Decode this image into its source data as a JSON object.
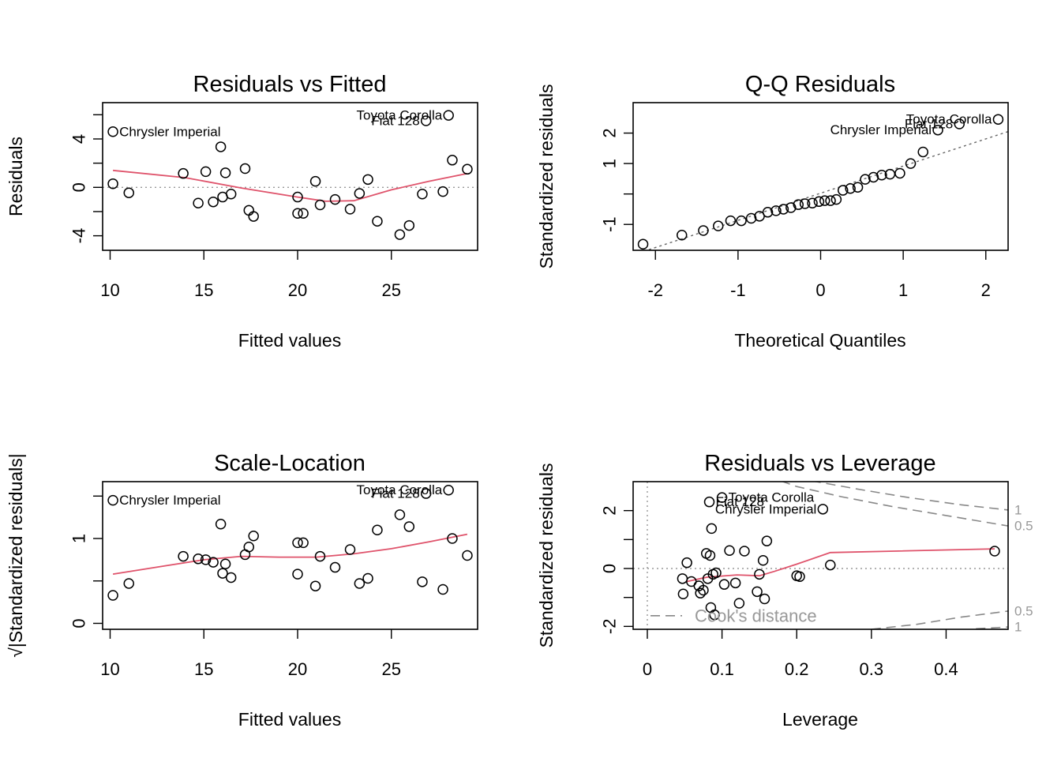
{
  "chart_data": [
    {
      "type": "scatter",
      "title": "Residuals vs Fitted",
      "xlabel": "Fitted values",
      "ylabel": "Residuals",
      "xlim": [
        9.6,
        29.6
      ],
      "ylim": [
        -5.2,
        7.0
      ],
      "xticks": [
        10,
        15,
        20,
        25
      ],
      "yticks": [
        -4,
        0,
        4
      ],
      "ytick_minor": [
        -2,
        2,
        6
      ],
      "reference_line": {
        "y": 0
      },
      "points": [
        {
          "x": 10.15,
          "y": 4.6
        },
        {
          "x": 10.15,
          "y": 0.3
        },
        {
          "x": 11.0,
          "y": -0.45
        },
        {
          "x": 13.9,
          "y": 1.15
        },
        {
          "x": 14.7,
          "y": -1.3
        },
        {
          "x": 15.1,
          "y": 1.3
        },
        {
          "x": 15.5,
          "y": -1.2
        },
        {
          "x": 15.9,
          "y": 3.35
        },
        {
          "x": 16.0,
          "y": -0.8
        },
        {
          "x": 16.15,
          "y": 1.2
        },
        {
          "x": 16.45,
          "y": -0.55
        },
        {
          "x": 17.2,
          "y": 1.55
        },
        {
          "x": 17.4,
          "y": -1.9
        },
        {
          "x": 17.65,
          "y": -2.4
        },
        {
          "x": 20.0,
          "y": -0.8
        },
        {
          "x": 20.0,
          "y": -2.15
        },
        {
          "x": 20.3,
          "y": -2.15
        },
        {
          "x": 20.95,
          "y": 0.5
        },
        {
          "x": 21.2,
          "y": -1.45
        },
        {
          "x": 22.0,
          "y": -1.0
        },
        {
          "x": 22.8,
          "y": -1.8
        },
        {
          "x": 23.3,
          "y": -0.5
        },
        {
          "x": 23.75,
          "y": 0.65
        },
        {
          "x": 24.25,
          "y": -2.8
        },
        {
          "x": 25.45,
          "y": -3.9
        },
        {
          "x": 25.95,
          "y": -3.15
        },
        {
          "x": 26.65,
          "y": -0.55
        },
        {
          "x": 26.85,
          "y": 5.5
        },
        {
          "x": 27.75,
          "y": -0.35
        },
        {
          "x": 28.05,
          "y": 5.95
        },
        {
          "x": 28.25,
          "y": 2.25
        },
        {
          "x": 29.05,
          "y": 1.5
        }
      ],
      "smooth": [
        [
          10.15,
          1.4
        ],
        [
          14,
          0.8
        ],
        [
          17,
          -0.05
        ],
        [
          20,
          -0.8
        ],
        [
          21.5,
          -1.15
        ],
        [
          23,
          -1.1
        ],
        [
          25,
          -0.2
        ],
        [
          27,
          0.5
        ],
        [
          29.05,
          1.15
        ]
      ],
      "labels": [
        {
          "text": "Chrysler Imperial",
          "x": 10.15,
          "y": 4.6,
          "side": "right"
        },
        {
          "text": "Toyota Corolla",
          "x": 28.05,
          "y": 5.95,
          "side": "left"
        },
        {
          "text": "Fiat 128",
          "x": 26.85,
          "y": 5.5,
          "side": "left"
        }
      ]
    },
    {
      "type": "scatter",
      "title": "Q-Q Residuals",
      "xlabel": "Theoretical Quantiles",
      "ylabel": "Standardized residuals",
      "xlim": [
        -2.27,
        2.27
      ],
      "ylim": [
        -1.85,
        3.0
      ],
      "xticks": [
        -2,
        -1,
        0,
        1,
        2
      ],
      "yticks": [
        -1,
        1,
        2
      ],
      "ytick_minor": [
        0
      ],
      "reference_line": {
        "x1": -2.27,
        "y1": -2.0,
        "x2": 2.27,
        "y2": 2.05
      },
      "points": [
        {
          "x": -2.15,
          "y": -1.65
        },
        {
          "x": -1.68,
          "y": -1.35
        },
        {
          "x": -1.42,
          "y": -1.2
        },
        {
          "x": -1.24,
          "y": -1.05
        },
        {
          "x": -1.09,
          "y": -0.88
        },
        {
          "x": -0.96,
          "y": -0.88
        },
        {
          "x": -0.84,
          "y": -0.8
        },
        {
          "x": -0.74,
          "y": -0.73
        },
        {
          "x": -0.64,
          "y": -0.6
        },
        {
          "x": -0.54,
          "y": -0.55
        },
        {
          "x": -0.45,
          "y": -0.5
        },
        {
          "x": -0.36,
          "y": -0.45
        },
        {
          "x": -0.27,
          "y": -0.35
        },
        {
          "x": -0.19,
          "y": -0.32
        },
        {
          "x": -0.1,
          "y": -0.3
        },
        {
          "x": -0.02,
          "y": -0.25
        },
        {
          "x": 0.05,
          "y": -0.22
        },
        {
          "x": 0.12,
          "y": -0.22
        },
        {
          "x": 0.19,
          "y": -0.18
        },
        {
          "x": 0.27,
          "y": 0.12
        },
        {
          "x": 0.36,
          "y": 0.18
        },
        {
          "x": 0.45,
          "y": 0.22
        },
        {
          "x": 0.54,
          "y": 0.48
        },
        {
          "x": 0.64,
          "y": 0.55
        },
        {
          "x": 0.74,
          "y": 0.62
        },
        {
          "x": 0.84,
          "y": 0.65
        },
        {
          "x": 0.96,
          "y": 0.68
        },
        {
          "x": 1.09,
          "y": 1.0
        },
        {
          "x": 1.24,
          "y": 1.38
        },
        {
          "x": 1.42,
          "y": 2.1
        },
        {
          "x": 1.68,
          "y": 2.3
        },
        {
          "x": 2.15,
          "y": 2.45
        }
      ],
      "labels": [
        {
          "text": "Toyota Corolla",
          "x": 2.15,
          "y": 2.45,
          "side": "left"
        },
        {
          "text": "Fiat 128",
          "x": 1.68,
          "y": 2.3,
          "side": "left"
        },
        {
          "text": "Chrysler Imperial",
          "x": 1.42,
          "y": 2.1,
          "side": "left"
        }
      ]
    },
    {
      "type": "scatter",
      "title": "Scale-Location",
      "xlabel": "Fitted values",
      "ylabel": "√|Standardized residuals|",
      "xlim": [
        9.6,
        29.6
      ],
      "ylim": [
        -0.07,
        1.67
      ],
      "xticks": [
        10,
        15,
        20,
        25
      ],
      "yticks": [
        0.0,
        1.0
      ],
      "ytick_minor": [
        0.5,
        1.5
      ],
      "points": [
        {
          "x": 10.15,
          "y": 1.45
        },
        {
          "x": 10.15,
          "y": 0.33
        },
        {
          "x": 11.0,
          "y": 0.47
        },
        {
          "x": 13.9,
          "y": 0.79
        },
        {
          "x": 14.7,
          "y": 0.76
        },
        {
          "x": 15.1,
          "y": 0.75
        },
        {
          "x": 15.5,
          "y": 0.72
        },
        {
          "x": 15.9,
          "y": 1.17
        },
        {
          "x": 16.0,
          "y": 0.59
        },
        {
          "x": 16.15,
          "y": 0.7
        },
        {
          "x": 16.45,
          "y": 0.54
        },
        {
          "x": 17.2,
          "y": 0.81
        },
        {
          "x": 17.4,
          "y": 0.9
        },
        {
          "x": 17.65,
          "y": 1.03
        },
        {
          "x": 20.0,
          "y": 0.95
        },
        {
          "x": 20.0,
          "y": 0.58
        },
        {
          "x": 20.3,
          "y": 0.95
        },
        {
          "x": 20.95,
          "y": 0.44
        },
        {
          "x": 21.2,
          "y": 0.79
        },
        {
          "x": 22.0,
          "y": 0.66
        },
        {
          "x": 22.8,
          "y": 0.87
        },
        {
          "x": 23.3,
          "y": 0.47
        },
        {
          "x": 23.75,
          "y": 0.53
        },
        {
          "x": 24.25,
          "y": 1.1
        },
        {
          "x": 25.45,
          "y": 1.28
        },
        {
          "x": 25.95,
          "y": 1.14
        },
        {
          "x": 26.65,
          "y": 0.49
        },
        {
          "x": 26.85,
          "y": 1.53
        },
        {
          "x": 27.75,
          "y": 0.4
        },
        {
          "x": 28.05,
          "y": 1.57
        },
        {
          "x": 28.25,
          "y": 1.0
        },
        {
          "x": 29.05,
          "y": 0.8
        }
      ],
      "smooth": [
        [
          10.15,
          0.58
        ],
        [
          13,
          0.68
        ],
        [
          15,
          0.75
        ],
        [
          17,
          0.79
        ],
        [
          19,
          0.78
        ],
        [
          21,
          0.78
        ],
        [
          23,
          0.82
        ],
        [
          25,
          0.88
        ],
        [
          27,
          0.96
        ],
        [
          29.05,
          1.05
        ]
      ],
      "labels": [
        {
          "text": "Chrysler Imperial",
          "x": 10.15,
          "y": 1.45,
          "side": "right"
        },
        {
          "text": "Toyota Corolla",
          "x": 28.05,
          "y": 1.57,
          "side": "left"
        },
        {
          "text": "Fiat 128",
          "x": 26.85,
          "y": 1.53,
          "side": "left"
        }
      ]
    },
    {
      "type": "scatter",
      "title": "Residuals vs Leverage",
      "xlabel": "Leverage",
      "ylabel": "Standardized residuals",
      "xlim": [
        -0.019,
        0.483
      ],
      "ylim": [
        -2.1,
        3.0
      ],
      "xticks": [
        0.0,
        0.1,
        0.2,
        0.3,
        0.4
      ],
      "yticks": [
        -2,
        0,
        2
      ],
      "ytick_minor": [
        -1,
        1
      ],
      "reference_line": {
        "y": 0,
        "x": 0
      },
      "points": [
        {
          "x": 0.047,
          "y": -0.35
        },
        {
          "x": 0.048,
          "y": -0.88
        },
        {
          "x": 0.053,
          "y": 0.2
        },
        {
          "x": 0.059,
          "y": -0.45
        },
        {
          "x": 0.069,
          "y": -0.6
        },
        {
          "x": 0.071,
          "y": -0.85
        },
        {
          "x": 0.075,
          "y": -0.75
        },
        {
          "x": 0.079,
          "y": 0.52
        },
        {
          "x": 0.081,
          "y": -0.35
        },
        {
          "x": 0.083,
          "y": 2.3
        },
        {
          "x": 0.084,
          "y": 0.45
        },
        {
          "x": 0.085,
          "y": -1.35
        },
        {
          "x": 0.086,
          "y": 1.38
        },
        {
          "x": 0.088,
          "y": -0.2
        },
        {
          "x": 0.09,
          "y": -1.6
        },
        {
          "x": 0.092,
          "y": -0.15
        },
        {
          "x": 0.1,
          "y": 2.45
        },
        {
          "x": 0.103,
          "y": -0.55
        },
        {
          "x": 0.11,
          "y": 0.62
        },
        {
          "x": 0.118,
          "y": -0.5
        },
        {
          "x": 0.123,
          "y": -1.2
        },
        {
          "x": 0.13,
          "y": 0.6
        },
        {
          "x": 0.147,
          "y": -0.8
        },
        {
          "x": 0.15,
          "y": -0.2
        },
        {
          "x": 0.155,
          "y": 0.28
        },
        {
          "x": 0.157,
          "y": -1.05
        },
        {
          "x": 0.16,
          "y": 0.95
        },
        {
          "x": 0.2,
          "y": -0.25
        },
        {
          "x": 0.204,
          "y": -0.28
        },
        {
          "x": 0.235,
          "y": 2.05
        },
        {
          "x": 0.245,
          "y": 0.12
        },
        {
          "x": 0.465,
          "y": 0.6
        }
      ],
      "smooth": [
        [
          0.053,
          -0.45
        ],
        [
          0.08,
          -0.3
        ],
        [
          0.12,
          -0.22
        ],
        [
          0.15,
          -0.25
        ],
        [
          0.17,
          -0.1
        ],
        [
          0.2,
          0.15
        ],
        [
          0.245,
          0.55
        ],
        [
          0.465,
          0.68
        ]
      ],
      "cooks_distance": {
        "legend": "Cook's distance",
        "contours": [
          {
            "level": "0.5",
            "pos": [
              [
                0.16,
                3.2
              ],
              [
                0.2,
                2.83
              ],
              [
                0.26,
                2.48
              ],
              [
                0.33,
                2.13
              ],
              [
                0.4,
                1.83
              ],
              [
                0.483,
                1.47
              ]
            ],
            "neg": [
              [
                0.3,
                -2.1
              ],
              [
                0.36,
                -1.93
              ],
              [
                0.42,
                -1.68
              ],
              [
                0.483,
                -1.47
              ]
            ]
          },
          {
            "level": "1",
            "pos": [
              [
                0.18,
                3.2
              ],
              [
                0.22,
                3.03
              ],
              [
                0.28,
                2.75
              ],
              [
                0.35,
                2.45
              ],
              [
                0.42,
                2.2
              ],
              [
                0.483,
                2.02
              ]
            ],
            "neg": [
              [
                0.44,
                -2.08
              ],
              [
                0.483,
                -2.02
              ]
            ]
          }
        ]
      },
      "labels": [
        {
          "text": "Toyota Corolla",
          "x": 0.1,
          "y": 2.45,
          "side": "right"
        },
        {
          "text": "Fiat 128",
          "x": 0.083,
          "y": 2.3,
          "side": "right"
        },
        {
          "text": "Chrysler Imperial",
          "x": 0.235,
          "y": 2.05,
          "side": "left"
        }
      ]
    }
  ]
}
